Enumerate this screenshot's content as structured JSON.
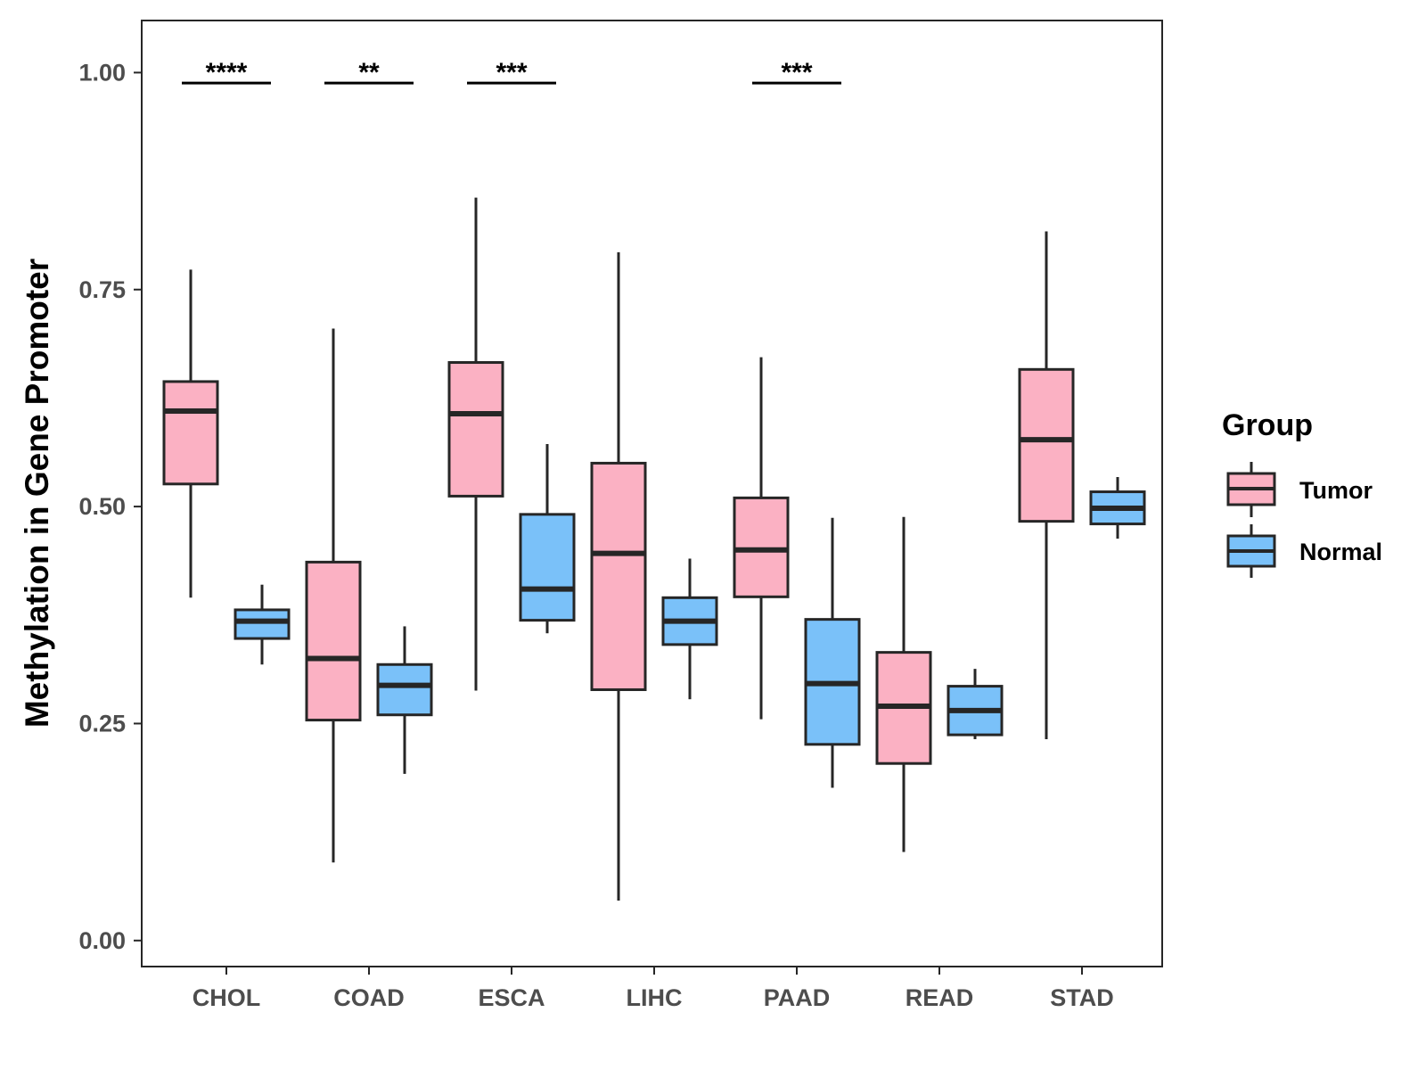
{
  "chart_data": {
    "type": "boxplot",
    "title": "",
    "xlabel": "",
    "ylabel": "Methylation in Gene Promoter",
    "ylim": [
      -0.03,
      1.06
    ],
    "yticks": [
      0.0,
      0.25,
      0.5,
      0.75,
      1.0
    ],
    "ytick_labels": [
      "0.00",
      "0.25",
      "0.50",
      "0.75",
      "1.00"
    ],
    "categories": [
      "CHOL",
      "COAD",
      "ESCA",
      "LIHC",
      "PAAD",
      "READ",
      "STAD"
    ],
    "grid": false,
    "legend": {
      "title": "Group",
      "position": "right",
      "entries": [
        "Tumor",
        "Normal"
      ]
    },
    "series": [
      {
        "name": "Tumor",
        "color": "#FBB1C3",
        "boxes": [
          {
            "whisker_low": 0.395,
            "q1": 0.526,
            "median": 0.61,
            "q3": 0.644,
            "whisker_high": 0.773
          },
          {
            "whisker_low": 0.09,
            "q1": 0.254,
            "median": 0.325,
            "q3": 0.436,
            "whisker_high": 0.705
          },
          {
            "whisker_low": 0.288,
            "q1": 0.512,
            "median": 0.607,
            "q3": 0.666,
            "whisker_high": 0.856
          },
          {
            "whisker_low": 0.046,
            "q1": 0.289,
            "median": 0.446,
            "q3": 0.55,
            "whisker_high": 0.793
          },
          {
            "whisker_low": 0.255,
            "q1": 0.396,
            "median": 0.45,
            "q3": 0.51,
            "whisker_high": 0.672
          },
          {
            "whisker_low": 0.102,
            "q1": 0.204,
            "median": 0.27,
            "q3": 0.332,
            "whisker_high": 0.488
          },
          {
            "whisker_low": 0.232,
            "q1": 0.483,
            "median": 0.577,
            "q3": 0.658,
            "whisker_high": 0.817
          }
        ]
      },
      {
        "name": "Normal",
        "color": "#7AC1F9",
        "boxes": [
          {
            "whisker_low": 0.318,
            "q1": 0.348,
            "median": 0.368,
            "q3": 0.381,
            "whisker_high": 0.41
          },
          {
            "whisker_low": 0.192,
            "q1": 0.26,
            "median": 0.294,
            "q3": 0.318,
            "whisker_high": 0.362
          },
          {
            "whisker_low": 0.354,
            "q1": 0.369,
            "median": 0.405,
            "q3": 0.491,
            "whisker_high": 0.572
          },
          {
            "whisker_low": 0.278,
            "q1": 0.341,
            "median": 0.368,
            "q3": 0.395,
            "whisker_high": 0.44
          },
          {
            "whisker_low": 0.176,
            "q1": 0.226,
            "median": 0.296,
            "q3": 0.37,
            "whisker_high": 0.487
          },
          {
            "whisker_low": 0.232,
            "q1": 0.237,
            "median": 0.265,
            "q3": 0.293,
            "whisker_high": 0.313
          },
          {
            "whisker_low": 0.463,
            "q1": 0.48,
            "median": 0.498,
            "q3": 0.517,
            "whisker_high": 0.534
          }
        ]
      }
    ],
    "annotations": [
      {
        "category": "CHOL",
        "text": "****",
        "y": 0.988
      },
      {
        "category": "COAD",
        "text": "**",
        "y": 0.988
      },
      {
        "category": "ESCA",
        "text": "***",
        "y": 0.988
      },
      {
        "category": "PAAD",
        "text": "***",
        "y": 0.988
      }
    ]
  },
  "colors": {
    "tumor": "#FBB1C3",
    "normal": "#7AC1F9",
    "stroke": "#262626",
    "tick_text": "#4d4d4d"
  }
}
